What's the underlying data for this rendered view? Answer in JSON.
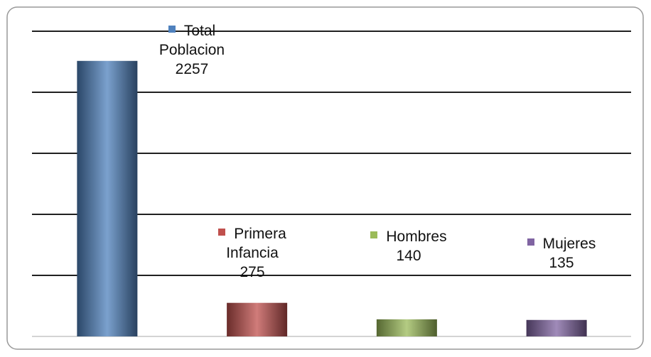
{
  "chart_data": {
    "type": "bar",
    "categories": [
      "Total Poblacion",
      "Primera Infancia",
      "Hombres",
      "Mujeres"
    ],
    "values": [
      2257,
      275,
      140,
      135
    ],
    "colors": [
      "#4f81bd",
      "#c0504d",
      "#9bbb59",
      "#8064a2"
    ],
    "ylim": [
      0,
      2500
    ],
    "yticks": [
      0,
      500,
      1000,
      1500,
      2000,
      2500
    ],
    "grid": true
  }
}
